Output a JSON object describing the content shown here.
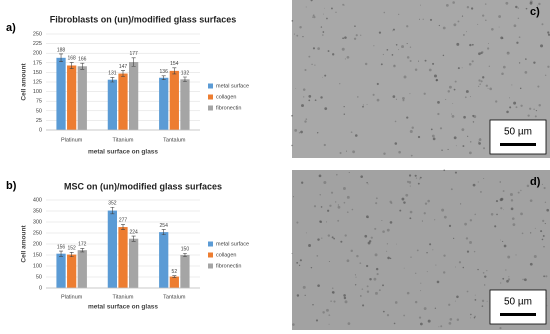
{
  "chart_data": [
    {
      "type": "bar",
      "title": "Fibroblasts on (un)/modified glass surfaces",
      "x_label": "metal surface on glass",
      "y_label": "Cell amount",
      "categories": [
        "Platinum",
        "Titanium",
        "Tantalum"
      ],
      "series": [
        {
          "name": "metal surface",
          "color": "#5b9bd5",
          "values": [
            188,
            131,
            136
          ],
          "errors": [
            10,
            6,
            5
          ]
        },
        {
          "name": "collagen",
          "color": "#ed7d31",
          "values": [
            168,
            147,
            154
          ],
          "errors": [
            8,
            8,
            8
          ]
        },
        {
          "name": "fibronectin",
          "color": "#a5a5a5",
          "values": [
            166,
            177,
            132
          ],
          "errors": [
            8,
            11,
            6
          ]
        }
      ],
      "ylim": [
        0,
        250
      ],
      "yticks": [
        0,
        25,
        50,
        75,
        100,
        125,
        150,
        175,
        200,
        225,
        250
      ],
      "grid": true,
      "legend": "right"
    },
    {
      "type": "bar",
      "title": "MSC on (un)/modified glass surfaces",
      "x_label": "metal surface on glass",
      "y_label": "Cell amount",
      "categories": [
        "Platinum",
        "Titanium",
        "Tantalum"
      ],
      "series": [
        {
          "name": "metal surface",
          "color": "#5b9bd5",
          "values": [
            156,
            352,
            254
          ],
          "errors": [
            12,
            15,
            12
          ]
        },
        {
          "name": "collagen",
          "color": "#ed7d31",
          "values": [
            152,
            277,
            52
          ],
          "errors": [
            10,
            12,
            4
          ]
        },
        {
          "name": "fibronectin",
          "color": "#a5a5a5",
          "values": [
            172,
            224,
            150
          ],
          "errors": [
            8,
            12,
            8
          ]
        }
      ],
      "ylim": [
        0,
        400
      ],
      "yticks": [
        0,
        50,
        100,
        150,
        200,
        250,
        300,
        350,
        400
      ],
      "grid": true,
      "legend": "right"
    }
  ],
  "panel_labels": [
    "a)",
    "b)",
    "c)",
    "d)"
  ],
  "scale_bars": [
    "50 µm",
    "50 µm"
  ]
}
